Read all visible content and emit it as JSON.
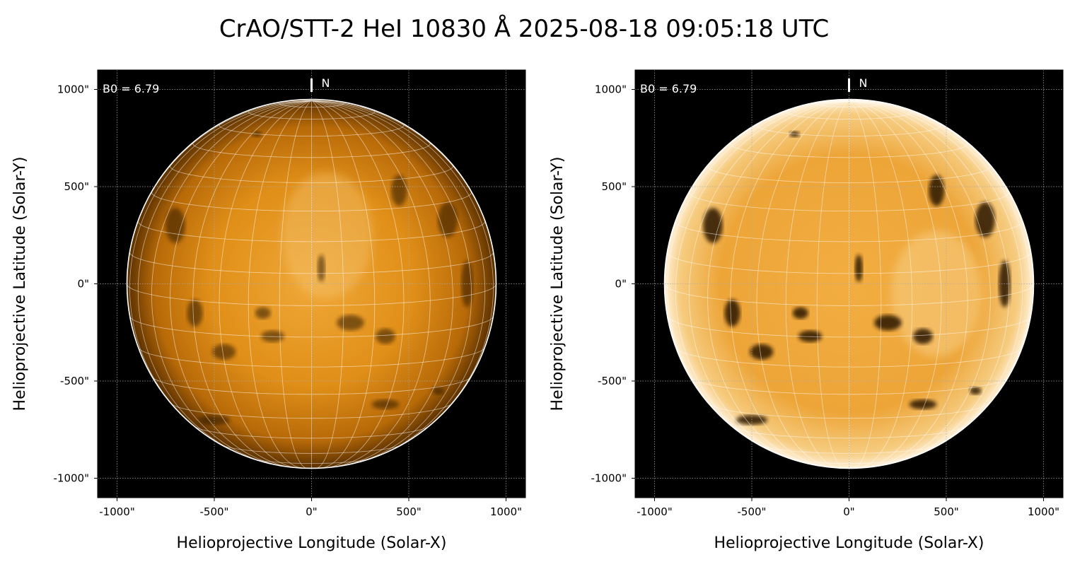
{
  "chart_data": {
    "type": "heatmap",
    "title": "CrAO/STT-2 HeI 10830 Å 2025-08-18 09:05:18 UTC",
    "colors": {
      "disk_mid": "#e08a10",
      "disk_light": "#f6c060",
      "disk_dark": "#2a1500",
      "background": "#000000",
      "grid": "#ffffff"
    },
    "panels": [
      {
        "name": "left",
        "xlabel": "Helioprojective Longitude (Solar-X)",
        "ylabel": "Helioprojective Latitude (Solar-Y)",
        "xlim": [
          -1100,
          1100
        ],
        "ylim": [
          -1100,
          1100
        ],
        "xticks": [
          -1000,
          -500,
          0,
          500,
          1000
        ],
        "xtick_labels": [
          "-1000\"",
          "-500\"",
          "0\"",
          "500\"",
          "1000\""
        ],
        "yticks": [
          1000,
          500,
          0,
          -500,
          -1000
        ],
        "ytick_labels": [
          "1000\"",
          "500\"",
          "0\"",
          "-500\"",
          "-1000\""
        ],
        "grid": true,
        "annotation_b0": "B0 = 6.79",
        "north_label": "N",
        "solar_radius_arcsec": 949,
        "b0_deg": 6.79,
        "heliographic_grid_spacing_deg": 10,
        "contrast": "normal"
      },
      {
        "name": "right",
        "xlabel": "Helioprojective Longitude (Solar-X)",
        "ylabel": "Helioprojective Latitude (Solar-Y)",
        "xlim": [
          -1100,
          1100
        ],
        "ylim": [
          -1100,
          1100
        ],
        "xticks": [
          -1000,
          -500,
          0,
          500,
          1000
        ],
        "xtick_labels": [
          "-1000\"",
          "-500\"",
          "0\"",
          "500\"",
          "1000\""
        ],
        "yticks": [
          1000,
          500,
          0,
          -500,
          -1000
        ],
        "ytick_labels": [
          "1000\"",
          "500\"",
          "0\"",
          "-500\"",
          "-1000\""
        ],
        "grid": true,
        "annotation_b0": "B0 = 6.79",
        "north_label": "N",
        "solar_radius_arcsec": 949,
        "b0_deg": 6.79,
        "heliographic_grid_spacing_deg": 10,
        "contrast": "limb-corrected"
      }
    ]
  }
}
